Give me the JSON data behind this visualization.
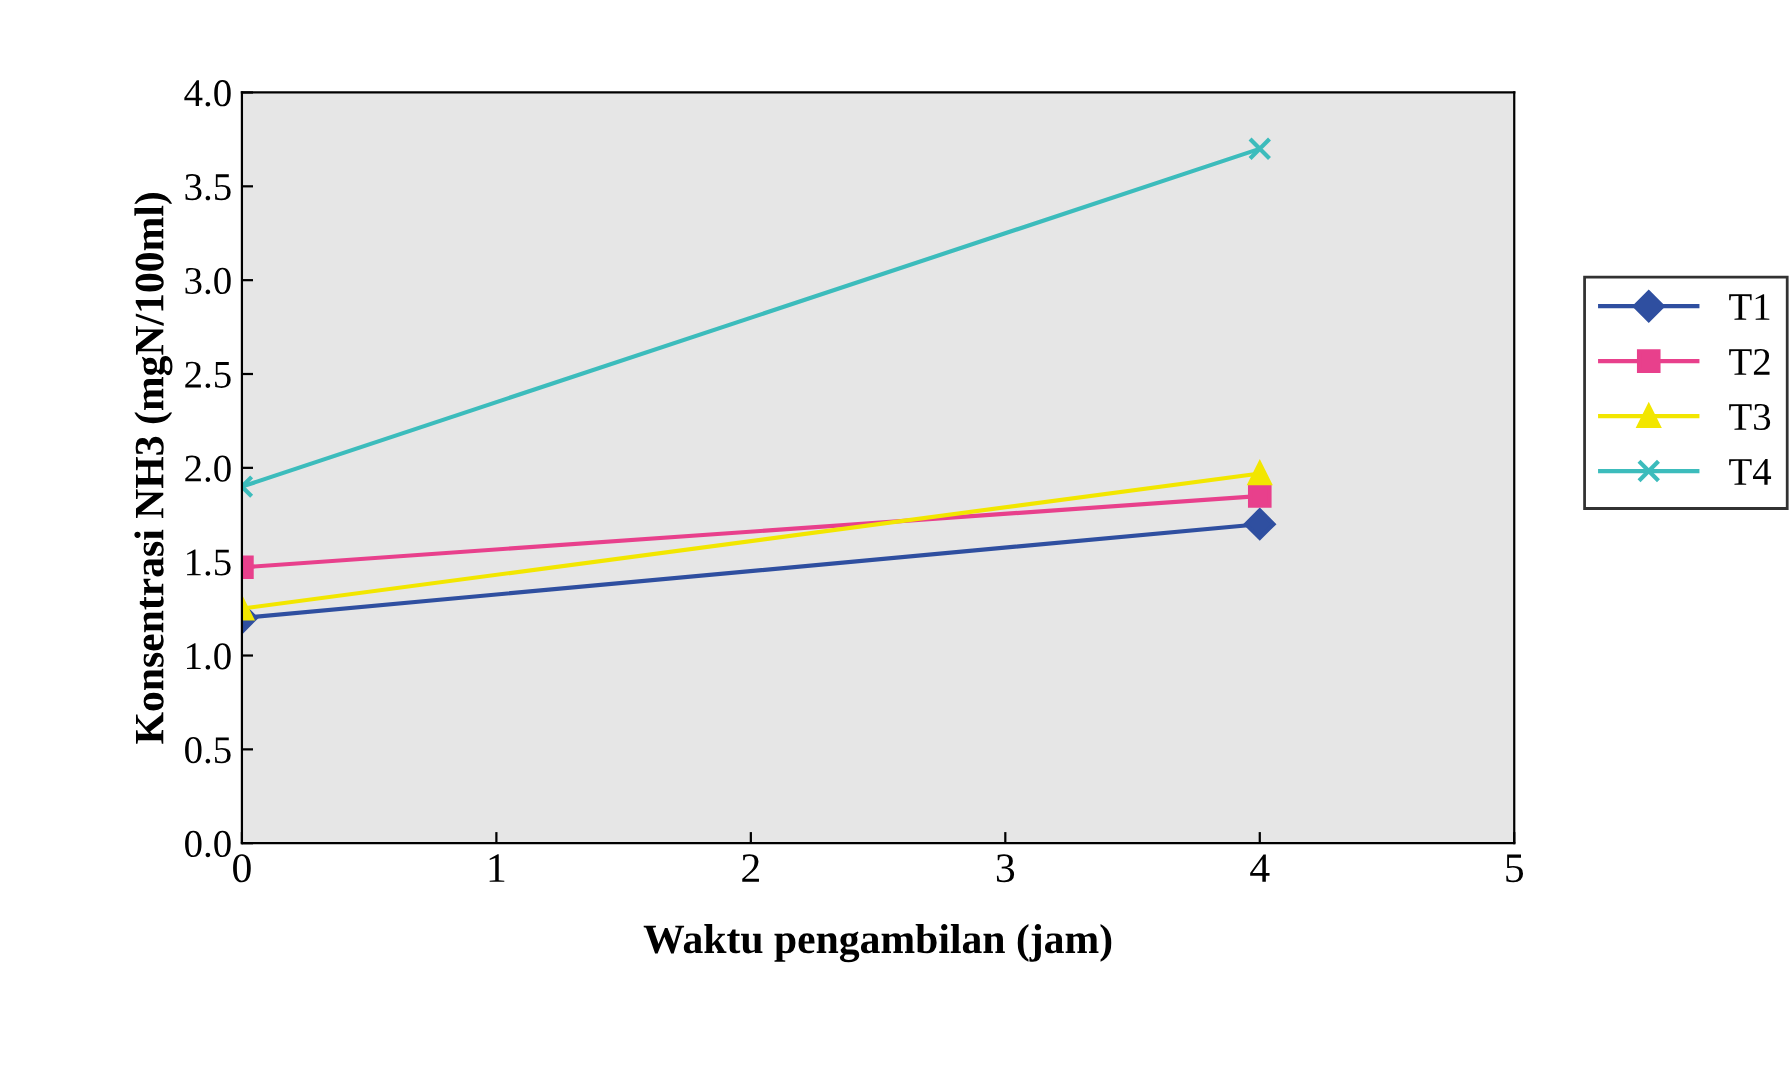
{
  "chart_data": {
    "type": "line",
    "xlabel": "Waktu pengambilan (jam)",
    "ylabel": "Konsentrasi NH3 (mgN/100ml)",
    "x": [
      0,
      4
    ],
    "series": [
      {
        "name": "T1",
        "color": "#2f4fa0",
        "marker": "diamond",
        "values": [
          1.2,
          1.7
        ]
      },
      {
        "name": "T2",
        "color": "#e8408c",
        "marker": "square",
        "values": [
          1.47,
          1.85
        ]
      },
      {
        "name": "T3",
        "color": "#f2e600",
        "marker": "triangle",
        "values": [
          1.25,
          1.97
        ]
      },
      {
        "name": "T4",
        "color": "#3cbcbc",
        "marker": "cross",
        "values": [
          1.9,
          3.7
        ]
      }
    ],
    "xlim": [
      0,
      5
    ],
    "xticks": [
      0,
      1,
      2,
      3,
      4,
      5
    ],
    "ylim": [
      0,
      4
    ],
    "yticks": [
      {
        "value": 0,
        "label": "0.0"
      },
      0.5,
      {
        "value": 1,
        "label": "1.0"
      },
      1.5,
      {
        "value": 2,
        "label": "2.0"
      },
      2.5,
      {
        "value": 3,
        "label": "3.0"
      },
      3.5,
      {
        "value": 4,
        "label": "4.0"
      }
    ],
    "grid": false,
    "legend": "right",
    "line_style": "solid"
  }
}
